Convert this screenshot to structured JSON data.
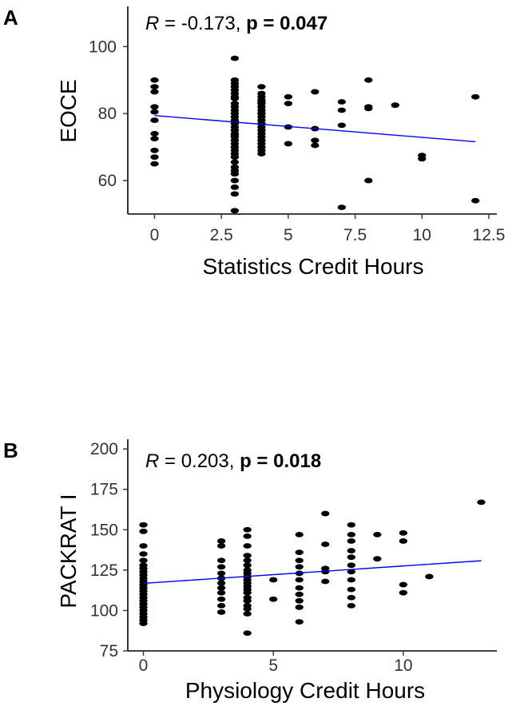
{
  "chart_data": [
    {
      "type": "scatter",
      "panel": "A",
      "xlabel": "Statistics Credit Hours",
      "ylabel": "EOCE",
      "xlim": [
        -1,
        12.8
      ],
      "ylim": [
        50,
        112
      ],
      "xticks": [
        0,
        2.5,
        5,
        7.5,
        10,
        12.5
      ],
      "xtick_labels": [
        "0",
        "2.5",
        "5",
        "7.5",
        "10",
        "12.5"
      ],
      "yticks": [
        60,
        80,
        100
      ],
      "ytick_labels": [
        "60",
        "80",
        "100"
      ],
      "annotation": {
        "r_label": "R",
        "r_value": " = -0.173, ",
        "p_label": "p = 0.047"
      },
      "fit_line": {
        "x": [
          0,
          12
        ],
        "y": [
          79.4,
          71.6
        ],
        "color": "#0000ff"
      },
      "points": {
        "x": [
          0,
          0,
          0,
          0,
          0,
          0,
          0,
          0,
          0,
          0,
          0,
          3,
          3,
          3,
          3,
          3,
          3,
          3,
          3,
          3,
          3,
          3,
          3,
          3,
          3,
          3,
          3,
          3,
          3,
          3,
          3,
          3,
          3,
          3,
          3,
          3,
          3,
          3,
          3,
          3,
          3,
          3,
          3,
          3,
          3,
          3,
          4,
          4,
          4,
          4,
          4,
          4,
          4,
          4,
          4,
          4,
          4,
          4,
          4,
          4,
          4,
          4,
          4,
          4,
          4,
          4,
          4,
          4,
          5,
          5,
          5,
          5,
          6,
          6,
          6,
          6,
          7,
          7,
          7,
          7,
          8,
          8,
          8,
          8,
          9,
          10,
          10,
          12,
          12
        ],
        "y": [
          90,
          88,
          86.5,
          82,
          80.5,
          74,
          72.5,
          69,
          67,
          65,
          78,
          96.5,
          90,
          89,
          88,
          87,
          86,
          84.5,
          83,
          82,
          81,
          80,
          79,
          78,
          77,
          76,
          75,
          74,
          73,
          72,
          71,
          70,
          69,
          68,
          67,
          65.5,
          64,
          63,
          62,
          60,
          58,
          56,
          51,
          85,
          77.5,
          73.5,
          86,
          85,
          84,
          83,
          82,
          81,
          80,
          79,
          78,
          77,
          76,
          75,
          74,
          73,
          72,
          71,
          70,
          69,
          68,
          88,
          83.5,
          80,
          85,
          83,
          76,
          71,
          86.5,
          75.5,
          72,
          70.5,
          83.5,
          81,
          76.5,
          52,
          90,
          82,
          81.5,
          60,
          82.5,
          67.5,
          66.5,
          85,
          54
        ]
      },
      "color": "#000000"
    },
    {
      "type": "scatter",
      "panel": "B",
      "xlabel": "Physiology Credit Hours",
      "ylabel": "PACKRAT I",
      "xlim": [
        -0.6,
        13.6
      ],
      "ylim": [
        75,
        206
      ],
      "xticks": [
        0,
        5,
        10
      ],
      "xtick_labels": [
        "0",
        "5",
        "10"
      ],
      "yticks": [
        75,
        100,
        125,
        150,
        175,
        200
      ],
      "ytick_labels": [
        "75",
        "100",
        "125",
        "150",
        "175",
        "200"
      ],
      "annotation": {
        "r_label": "R",
        "r_value": " = 0.203, ",
        "p_label": "p = 0.018"
      },
      "fit_line": {
        "x": [
          0,
          13
        ],
        "y": [
          116.8,
          130.8
        ],
        "color": "#0000ff"
      },
      "points": {
        "x": [
          0,
          0,
          0,
          0,
          0,
          0,
          0,
          0,
          0,
          0,
          0,
          0,
          0,
          0,
          0,
          0,
          0,
          0,
          0,
          0,
          0,
          0,
          0,
          0,
          3,
          3,
          3,
          3,
          3,
          3,
          3,
          3,
          3,
          3,
          3,
          3,
          4,
          4,
          4,
          4,
          4,
          4,
          4,
          4,
          4,
          4,
          4,
          4,
          4,
          4,
          4,
          4,
          4,
          4,
          4,
          4,
          5,
          5,
          6,
          6,
          6,
          6,
          6,
          6,
          6,
          6,
          6,
          6,
          6,
          7,
          7,
          7,
          7,
          7,
          8,
          8,
          8,
          8,
          8,
          8,
          8,
          8,
          8,
          8,
          8,
          9,
          9,
          10,
          10,
          10,
          10,
          11,
          13
        ],
        "y": [
          153,
          149,
          140,
          135,
          131,
          128,
          126,
          124,
          122,
          120,
          118,
          116,
          114,
          112,
          110,
          108,
          106,
          104,
          102,
          100,
          98,
          96,
          94,
          92,
          143,
          140,
          131,
          127,
          123,
          120,
          117,
          114,
          111,
          107,
          103,
          99,
          150,
          146,
          140,
          134,
          131,
          128,
          125,
          123,
          121,
          119,
          117,
          115,
          113,
          111,
          108,
          106,
          103,
          101,
          98,
          86,
          119,
          107,
          147,
          136,
          131,
          127,
          123,
          119,
          114,
          110,
          106,
          102,
          93,
          160,
          141,
          126,
          124,
          118,
          153,
          147,
          143,
          137,
          133,
          128,
          124,
          119,
          113,
          108,
          103,
          147,
          132,
          148,
          143,
          116,
          111,
          121,
          167
        ]
      },
      "color": "#000000"
    }
  ]
}
